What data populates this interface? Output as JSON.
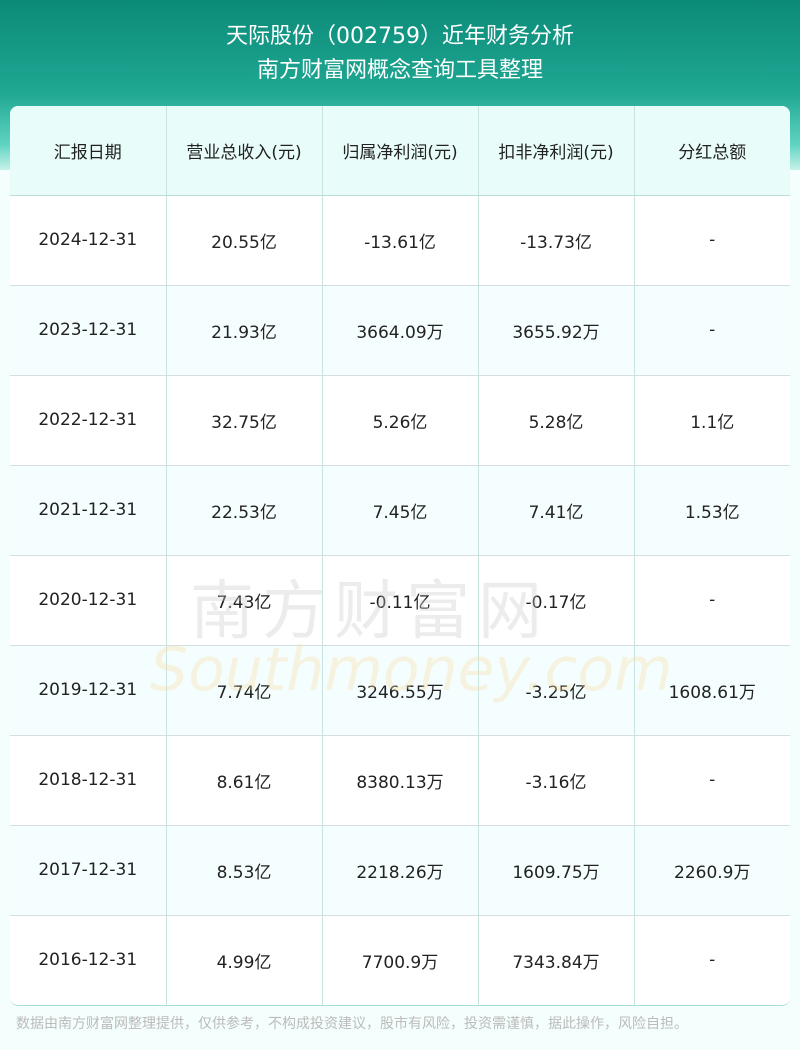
{
  "header": {
    "title": "天际股份（002759）近年财务分析",
    "subtitle": "南方财富网概念查询工具整理"
  },
  "table": {
    "columns": [
      "汇报日期",
      "营业总收入(元)",
      "归属净利润(元)",
      "扣非净利润(元)",
      "分红总额"
    ],
    "rows": [
      [
        "2024-12-31",
        "20.55亿",
        "-13.61亿",
        "-13.73亿",
        "-"
      ],
      [
        "2023-12-31",
        "21.93亿",
        "3664.09万",
        "3655.92万",
        "-"
      ],
      [
        "2022-12-31",
        "32.75亿",
        "5.26亿",
        "5.28亿",
        "1.1亿"
      ],
      [
        "2021-12-31",
        "22.53亿",
        "7.45亿",
        "7.41亿",
        "1.53亿"
      ],
      [
        "2020-12-31",
        "7.43亿",
        "-0.11亿",
        "-0.17亿",
        "-"
      ],
      [
        "2019-12-31",
        "7.74亿",
        "3246.55万",
        "-3.25亿",
        "1608.61万"
      ],
      [
        "2018-12-31",
        "8.61亿",
        "8380.13万",
        "-3.16亿",
        "-"
      ],
      [
        "2017-12-31",
        "8.53亿",
        "2218.26万",
        "1609.75万",
        "2260.9万"
      ],
      [
        "2016-12-31",
        "4.99亿",
        "7700.9万",
        "7343.84万",
        "-"
      ]
    ]
  },
  "watermark": {
    "cn": "南方财富网",
    "en": "Southmoney.com"
  },
  "footer": {
    "disclaimer": "数据由南方财富网整理提供，仅供参考，不构成投资建议，股市有风险，投资需谨慎，据此操作，风险自担。"
  }
}
